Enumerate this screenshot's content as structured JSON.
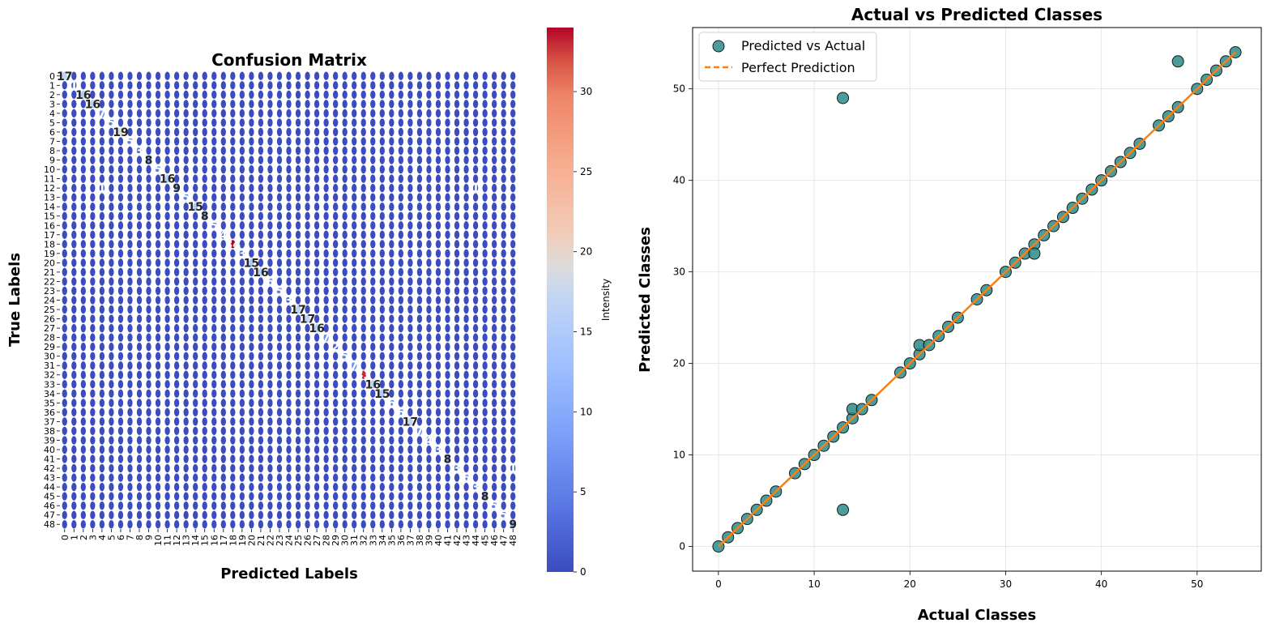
{
  "chart_data": [
    {
      "type": "heatmap",
      "title": "Confusion Matrix",
      "xlabel": "Predicted Labels",
      "ylabel": "True Labels",
      "x_ticks": [
        "0",
        "1",
        "2",
        "3",
        "4",
        "5",
        "6",
        "7",
        "8",
        "9",
        "10",
        "11",
        "12",
        "13",
        "14",
        "15",
        "16",
        "17",
        "18",
        "19",
        "20",
        "21",
        "22",
        "23",
        "24",
        "25",
        "26",
        "27",
        "28",
        "29",
        "30",
        "31",
        "32",
        "33",
        "34",
        "35",
        "36",
        "37",
        "38",
        "39",
        "40",
        "41",
        "42",
        "43",
        "44",
        "45",
        "46",
        "47",
        "48"
      ],
      "y_ticks": [
        "0",
        "1",
        "2",
        "3",
        "4",
        "5",
        "6",
        "7",
        "8",
        "9",
        "10",
        "11",
        "12",
        "13",
        "14",
        "15",
        "16",
        "17",
        "18",
        "19",
        "20",
        "21",
        "22",
        "23",
        "24",
        "25",
        "26",
        "27",
        "28",
        "29",
        "30",
        "31",
        "32",
        "33",
        "34",
        "35",
        "36",
        "37",
        "38",
        "39",
        "40",
        "41",
        "42",
        "43",
        "44",
        "45",
        "46",
        "47",
        "48"
      ],
      "diagonal_values": [
        17,
        1,
        16,
        16,
        7,
        5,
        19,
        5,
        3,
        8,
        5,
        16,
        9,
        5,
        15,
        8,
        5,
        4,
        34,
        3,
        15,
        16,
        6,
        5,
        3,
        17,
        17,
        16,
        7,
        2,
        5,
        7,
        33,
        16,
        15,
        6,
        6,
        17,
        7,
        4,
        3,
        8,
        3,
        6,
        3,
        8,
        5,
        5,
        9
      ],
      "off_diagonal": [
        {
          "row": 12,
          "col": 4,
          "value": 1
        },
        {
          "row": 12,
          "col": 44,
          "value": 1
        },
        {
          "row": 42,
          "col": 48,
          "value": 1
        }
      ],
      "colorbar": {
        "label": "Intensity",
        "ticks": [
          0,
          5,
          10,
          15,
          20,
          25,
          30
        ],
        "range": [
          0,
          34
        ]
      },
      "colormap": "coolwarm"
    },
    {
      "type": "scatter",
      "title": "Actual vs Predicted Classes",
      "xlabel": "Actual Classes",
      "ylabel": "Predicted Classes",
      "xlim": [
        -2.7,
        56.7
      ],
      "ylim": [
        -2.7,
        56.7
      ],
      "x_ticks": [
        0,
        10,
        20,
        30,
        40,
        50
      ],
      "y_ticks": [
        0,
        10,
        20,
        30,
        40,
        50
      ],
      "grid": true,
      "legend": {
        "position": "top-left",
        "entries": [
          "Predicted vs Actual",
          "Perfect Prediction"
        ]
      },
      "series": [
        {
          "name": "Predicted vs Actual",
          "color": "#2a8c88",
          "points": [
            [
              0,
              0
            ],
            [
              1,
              1
            ],
            [
              2,
              2
            ],
            [
              3,
              3
            ],
            [
              4,
              4
            ],
            [
              5,
              5
            ],
            [
              6,
              6
            ],
            [
              8,
              8
            ],
            [
              9,
              9
            ],
            [
              10,
              10
            ],
            [
              11,
              11
            ],
            [
              12,
              12
            ],
            [
              13,
              13
            ],
            [
              13,
              49
            ],
            [
              13,
              4
            ],
            [
              14,
              14
            ],
            [
              14,
              15
            ],
            [
              15,
              15
            ],
            [
              16,
              16
            ],
            [
              19,
              19
            ],
            [
              20,
              20
            ],
            [
              21,
              21
            ],
            [
              21,
              22
            ],
            [
              22,
              22
            ],
            [
              23,
              23
            ],
            [
              24,
              24
            ],
            [
              25,
              25
            ],
            [
              27,
              27
            ],
            [
              28,
              28
            ],
            [
              30,
              30
            ],
            [
              31,
              31
            ],
            [
              32,
              32
            ],
            [
              33,
              33
            ],
            [
              33,
              32
            ],
            [
              34,
              34
            ],
            [
              35,
              35
            ],
            [
              36,
              36
            ],
            [
              37,
              37
            ],
            [
              38,
              38
            ],
            [
              39,
              39
            ],
            [
              40,
              40
            ],
            [
              41,
              41
            ],
            [
              42,
              42
            ],
            [
              43,
              43
            ],
            [
              44,
              44
            ],
            [
              46,
              46
            ],
            [
              47,
              47
            ],
            [
              48,
              48
            ],
            [
              48,
              53
            ],
            [
              50,
              50
            ],
            [
              51,
              51
            ],
            [
              52,
              52
            ],
            [
              53,
              53
            ],
            [
              54,
              54
            ]
          ]
        },
        {
          "name": "Perfect Prediction",
          "color": "#ff7f0e",
          "line": [
            [
              0,
              0
            ],
            [
              54,
              54
            ]
          ]
        }
      ]
    }
  ]
}
